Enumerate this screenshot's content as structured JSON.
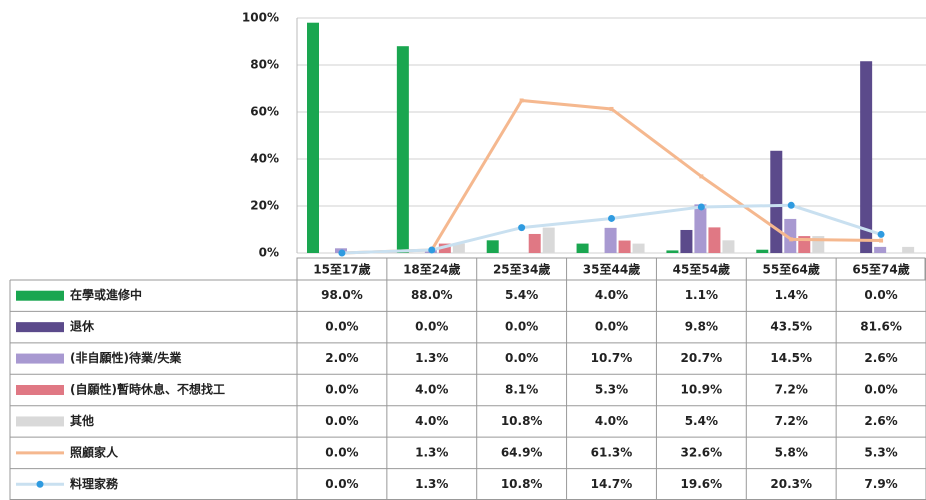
{
  "chart_data": {
    "type": "bar",
    "categories": [
      "15至17歲",
      "18至24歲",
      "25至34歲",
      "35至44歲",
      "45至54歲",
      "55至64歲",
      "65至74歲"
    ],
    "ylim": [
      0,
      100
    ],
    "yticks": [
      {
        "value": 0,
        "label": "0%"
      },
      {
        "value": 20,
        "label": "20%"
      },
      {
        "value": 40,
        "label": "40%"
      },
      {
        "value": 60,
        "label": "60%"
      },
      {
        "value": 80,
        "label": "80%"
      },
      {
        "value": 100,
        "label": "100%"
      }
    ],
    "grid": true,
    "series": [
      {
        "name": "在學或進修中",
        "type": "bar",
        "color": "#1aa650",
        "values": [
          98.0,
          88.0,
          5.4,
          4.0,
          1.1,
          1.4,
          0.0
        ],
        "value_labels": [
          "98.0%",
          "88.0%",
          "5.4%",
          "4.0%",
          "1.1%",
          "1.4%",
          "0.0%"
        ]
      },
      {
        "name": "退休",
        "type": "bar",
        "color": "#5b4a8b",
        "values": [
          0.0,
          0.0,
          0.0,
          0.0,
          9.8,
          43.5,
          81.6
        ],
        "value_labels": [
          "0.0%",
          "0.0%",
          "0.0%",
          "0.0%",
          "9.8%",
          "43.5%",
          "81.6%"
        ]
      },
      {
        "name": "(非自願性)待業/失業",
        "type": "bar",
        "color": "#a899d1",
        "values": [
          2.0,
          1.3,
          0.0,
          10.7,
          20.7,
          14.5,
          2.6
        ],
        "value_labels": [
          "2.0%",
          "1.3%",
          "0.0%",
          "10.7%",
          "20.7%",
          "14.5%",
          "2.6%"
        ]
      },
      {
        "name": "(自願性)暫時休息、不想找工",
        "type": "bar",
        "color": "#e07884",
        "values": [
          0.0,
          4.0,
          8.1,
          5.3,
          10.9,
          7.2,
          0.0
        ],
        "value_labels": [
          "0.0%",
          "4.0%",
          "8.1%",
          "5.3%",
          "10.9%",
          "7.2%",
          "0.0%"
        ]
      },
      {
        "name": "其他",
        "type": "bar",
        "color": "#d9d9d9",
        "values": [
          0.0,
          4.0,
          10.8,
          4.0,
          5.4,
          7.2,
          2.6
        ],
        "value_labels": [
          "0.0%",
          "4.0%",
          "10.8%",
          "4.0%",
          "5.4%",
          "7.2%",
          "2.6%"
        ]
      },
      {
        "name": "照顧家人",
        "type": "line",
        "color": "#f5b88f",
        "values": [
          0.0,
          1.3,
          64.9,
          61.3,
          32.6,
          5.8,
          5.3
        ],
        "value_labels": [
          "0.0%",
          "1.3%",
          "64.9%",
          "61.3%",
          "32.6%",
          "5.8%",
          "5.3%"
        ]
      },
      {
        "name": "料理家務",
        "type": "line",
        "color": "#c9e0f0",
        "marker_color": "#2f9be0",
        "values": [
          0.0,
          1.3,
          10.8,
          14.7,
          19.6,
          20.3,
          7.9
        ],
        "value_labels": [
          "0.0%",
          "1.3%",
          "10.8%",
          "14.7%",
          "19.6%",
          "20.3%",
          "7.9%"
        ]
      }
    ]
  }
}
